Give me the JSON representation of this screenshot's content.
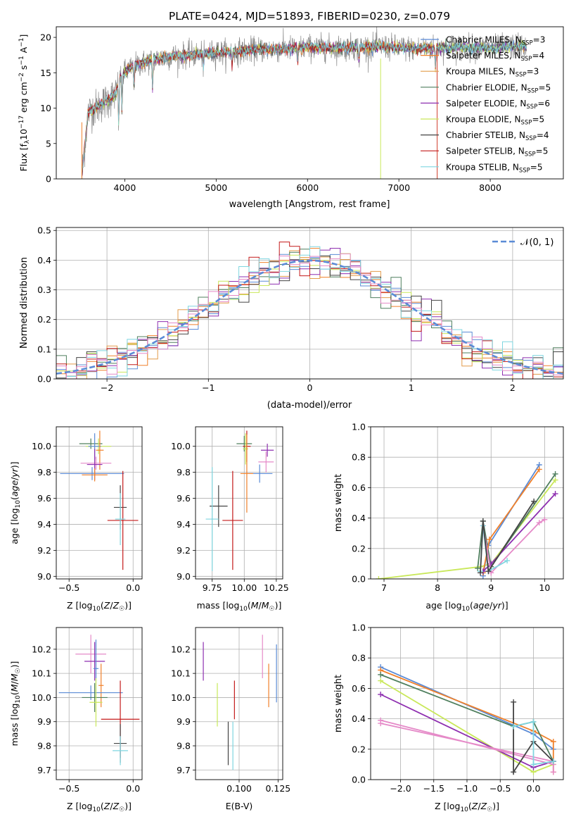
{
  "figure": {
    "title": "PLATE=0424, MJD=51893, FIBERID=0230, z=0.079",
    "colors": {
      "Chabrier MILES": "#5b8bd6",
      "Salpeter MILES": "#f0802a",
      "Kroupa MILES": "#e39b4a",
      "Chabrier ELODIE": "#4f7f5e",
      "Salpeter ELODIE": "#8e2fb0",
      "Kroupa ELODIE": "#c9e85a",
      "Chabrier STELIB": "#444444",
      "Salpeter STELIB": "#c41a1a",
      "Kroupa STELIB": "#7fd6e0",
      "Kroupa MILES alt": "#e58ac8",
      "gauss": "#5b8bd6"
    }
  },
  "chart_data": [
    {
      "id": "spectrum",
      "type": "line",
      "title": "PLATE=0424, MJD=51893, FIBERID=0230, z=0.079",
      "xlabel": "wavelength [Angstrom, rest frame]",
      "ylabel": "Flux [f_λ10^-17 erg cm^-2 s^-1 A^-1]",
      "xlim": [
        3250,
        8800
      ],
      "ylim": [
        0,
        21.5
      ],
      "xticks": [
        "4000",
        "5000",
        "6000",
        "7000",
        "8000"
      ],
      "yticks": [
        "0",
        "5",
        "10",
        "15",
        "20"
      ],
      "grid": false,
      "legend_position": "right",
      "legend": [
        {
          "label": "Chabrier MILES, N",
          "sub": "SSP",
          "tail": "=3",
          "color": "#5b8bd6"
        },
        {
          "label": "Salpeter MILES, N",
          "sub": "SSP",
          "tail": "=4",
          "color": "#f0802a"
        },
        {
          "label": "Kroupa MILES, N",
          "sub": "SSP",
          "tail": "=3",
          "color": "#e39b4a"
        },
        {
          "label": "Chabrier ELODIE, N",
          "sub": "SSP",
          "tail": "=5",
          "color": "#4f7f5e"
        },
        {
          "label": "Salpeter ELODIE, N",
          "sub": "SSP",
          "tail": "=6",
          "color": "#8e2fb0"
        },
        {
          "label": "Kroupa ELODIE, N",
          "sub": "SSP",
          "tail": "=5",
          "color": "#c9e85a"
        },
        {
          "label": "Chabrier STELIB, N",
          "sub": "SSP",
          "tail": "=4",
          "color": "#444444"
        },
        {
          "label": "Salpeter STELIB, N",
          "sub": "SSP",
          "tail": "=5",
          "color": "#c41a1a"
        },
        {
          "label": "Kroupa STELIB, N",
          "sub": "SSP",
          "tail": "=5",
          "color": "#7fd6e0"
        }
      ],
      "data_trend": {
        "x": [
          3530,
          3600,
          3700,
          3800,
          3900,
          3950,
          4000,
          4100,
          4300,
          4500,
          4800,
          5000,
          5200,
          5500,
          5800,
          6000,
          6300,
          6600,
          6800,
          7000,
          7200,
          7400,
          7600,
          7800,
          8000,
          8200,
          8400
        ],
        "y": [
          0.5,
          9.5,
          10.2,
          11.0,
          12.0,
          14.5,
          15.0,
          16.0,
          16.8,
          17.3,
          17.6,
          17.8,
          18.0,
          18.3,
          18.4,
          18.6,
          18.5,
          18.6,
          18.7,
          18.5,
          18.4,
          18.5,
          18.6,
          18.6,
          18.4,
          18.7,
          18.7
        ]
      }
    },
    {
      "id": "residuals",
      "type": "histogram",
      "xlabel": "(data-model)/error",
      "ylabel": "Normed distribution",
      "xlim": [
        -2.5,
        2.5
      ],
      "ylim": [
        0,
        0.51
      ],
      "xticks": [
        "−2",
        "−1",
        "0",
        "1",
        "2"
      ],
      "yticks": [
        "0.0",
        "0.1",
        "0.2",
        "0.3",
        "0.4",
        "0.5"
      ],
      "grid": true,
      "legend_position": "top-right",
      "legend": [
        {
          "label": "𝒩(0, 1)",
          "color": "#5b8bd6"
        }
      ],
      "bin_width": 0.1,
      "bins_start": -2.5,
      "reference_curve": "normal(0,1)"
    },
    {
      "id": "age_vs_Z",
      "type": "errorbar",
      "xlabel": "Z [log10(Z/Z☉)]",
      "ylabel": "age  [log10(age/yr)]",
      "xlim": [
        -0.6,
        0.07
      ],
      "ylim": [
        8.98,
        10.15
      ],
      "xticks": [
        "−0.5",
        "0.0"
      ],
      "yticks": [
        "9.0",
        "9.2",
        "9.4",
        "9.6",
        "9.8",
        "10.0"
      ],
      "grid": true,
      "points": [
        {
          "x": -0.33,
          "y": 10.02,
          "xerr": 0.09,
          "yerr": 0.04,
          "color": "#4f7f5e"
        },
        {
          "x": -0.27,
          "y": 10.0,
          "xerr": 0.1,
          "yerr": 0.06,
          "color": "#c9e85a"
        },
        {
          "x": -0.3,
          "y": 10.0,
          "xerr": 0.05,
          "yerr": 0.1,
          "color": "#5b8bd6"
        },
        {
          "x": -0.26,
          "y": 9.97,
          "xerr": 0.03,
          "yerr": 0.15,
          "color": "#f0802a"
        },
        {
          "x": -0.29,
          "y": 9.87,
          "xerr": 0.12,
          "yerr": 0.05,
          "color": "#e58ac8"
        },
        {
          "x": -0.3,
          "y": 9.86,
          "xerr": 0.06,
          "yerr": 0.12,
          "color": "#8e2fb0"
        },
        {
          "x": -0.32,
          "y": 9.79,
          "xerr": 0.25,
          "yerr": 0.05,
          "color": "#5b8bd6"
        },
        {
          "x": -0.3,
          "y": 9.78,
          "xerr": 0.1,
          "yerr": 0.05,
          "color": "#f0802a"
        },
        {
          "x": -0.1,
          "y": 9.53,
          "xerr": 0.05,
          "yerr": 0.17,
          "color": "#444444"
        },
        {
          "x": -0.08,
          "y": 9.43,
          "xerr": 0.12,
          "yerr": 0.38,
          "color": "#c41a1a"
        },
        {
          "x": -0.1,
          "y": 9.44,
          "xerr": 0.04,
          "yerr": 0.2,
          "color": "#7fd6e0"
        }
      ]
    },
    {
      "id": "age_vs_mass",
      "type": "errorbar",
      "xlabel": "mass [log10(M/M☉)]",
      "ylabel": "",
      "xlim": [
        9.62,
        10.3
      ],
      "ylim": [
        8.98,
        10.15
      ],
      "xticks": [
        "9.75",
        "10.00",
        "10.25"
      ],
      "yticks": [
        "9.0",
        "9.2",
        "9.4",
        "9.6",
        "9.8",
        "10.0"
      ],
      "grid": true,
      "points": [
        {
          "x": 10.0,
          "y": 10.02,
          "xerr": 0.06,
          "yerr": 0.06,
          "color": "#4f7f5e"
        },
        {
          "x": 10.02,
          "y": 10.0,
          "xerr": 0.03,
          "yerr": 0.12,
          "color": "#c41a1a"
        },
        {
          "x": 10.01,
          "y": 9.98,
          "xerr": 0.02,
          "yerr": 0.12,
          "color": "#c9e85a"
        },
        {
          "x": 10.18,
          "y": 9.97,
          "xerr": 0.05,
          "yerr": 0.05,
          "color": "#8e2fb0"
        },
        {
          "x": 10.17,
          "y": 9.88,
          "xerr": 0.06,
          "yerr": 0.08,
          "color": "#e58ac8"
        },
        {
          "x": 10.12,
          "y": 9.79,
          "xerr": 0.1,
          "yerr": 0.07,
          "color": "#5b8bd6"
        },
        {
          "x": 10.02,
          "y": 9.79,
          "xerr": 0.05,
          "yerr": 0.3,
          "color": "#f0802a"
        },
        {
          "x": 9.8,
          "y": 9.54,
          "xerr": 0.07,
          "yerr": 0.16,
          "color": "#444444"
        },
        {
          "x": 9.91,
          "y": 9.43,
          "xerr": 0.08,
          "yerr": 0.38,
          "color": "#c41a1a"
        },
        {
          "x": 9.75,
          "y": 9.44,
          "xerr": 0.05,
          "yerr": 0.4,
          "color": "#7fd6e0"
        }
      ]
    },
    {
      "id": "massweight_vs_age",
      "type": "line",
      "xlabel": "age  [log10(age/yr)]",
      "ylabel": "mass weight",
      "xlim": [
        6.75,
        10.35
      ],
      "ylim": [
        0,
        1.0
      ],
      "xticks": [
        "7",
        "8",
        "9",
        "10"
      ],
      "yticks": [
        "0.0",
        "0.2",
        "0.4",
        "0.6",
        "0.8",
        "1.0"
      ],
      "grid": true,
      "series": [
        {
          "color": "#c9e85a",
          "x": [
            6.9,
            8.8,
            9.0,
            10.2
          ],
          "y": [
            0.0,
            0.08,
            0.1,
            0.65
          ]
        },
        {
          "color": "#4f7f5e",
          "x": [
            8.75,
            8.85,
            9.0,
            10.2
          ],
          "y": [
            0.07,
            0.38,
            0.08,
            0.69
          ]
        },
        {
          "color": "#5b8bd6",
          "x": [
            8.85,
            8.95,
            9.9
          ],
          "y": [
            0.02,
            0.22,
            0.75
          ]
        },
        {
          "color": "#f0802a",
          "x": [
            8.85,
            8.97,
            9.9
          ],
          "y": [
            0.04,
            0.26,
            0.72
          ]
        },
        {
          "color": "#8e2fb0",
          "x": [
            8.85,
            9.0,
            10.2
          ],
          "y": [
            0.05,
            0.1,
            0.56
          ]
        },
        {
          "color": "#e58ac8",
          "x": [
            8.85,
            9.0,
            9.9,
            10.0
          ],
          "y": [
            0.35,
            0.04,
            0.37,
            0.39
          ]
        },
        {
          "color": "#7fd6e0",
          "x": [
            8.8,
            8.85,
            8.95,
            9.3
          ],
          "y": [
            0.05,
            0.35,
            0.05,
            0.12
          ]
        },
        {
          "color": "#444444",
          "x": [
            8.8,
            8.85,
            8.95,
            9.8
          ],
          "y": [
            0.04,
            0.38,
            0.05,
            0.51
          ]
        }
      ]
    },
    {
      "id": "mass_vs_Z",
      "type": "errorbar",
      "xlabel": "Z [log10(Z/Z☉)]",
      "ylabel": "mass [log10(M/M☉)]",
      "xlim": [
        -0.6,
        0.07
      ],
      "ylim": [
        9.66,
        10.29
      ],
      "xticks": [
        "−0.5",
        "0.0"
      ],
      "yticks": [
        "9.7",
        "9.8",
        "9.9",
        "10.0",
        "10.1",
        "10.2"
      ],
      "grid": true,
      "points": [
        {
          "x": -0.33,
          "y": 10.18,
          "xerr": 0.12,
          "yerr": 0.08,
          "color": "#e58ac8"
        },
        {
          "x": -0.3,
          "y": 10.15,
          "xerr": 0.08,
          "yerr": 0.08,
          "color": "#8e2fb0"
        },
        {
          "x": -0.29,
          "y": 10.12,
          "xerr": 0.02,
          "yerr": 0.12,
          "color": "#5b8bd6"
        },
        {
          "x": -0.25,
          "y": 10.05,
          "xerr": 0.02,
          "yerr": 0.09,
          "color": "#f0802a"
        },
        {
          "x": -0.33,
          "y": 10.02,
          "xerr": 0.25,
          "yerr": 0.03,
          "color": "#5b8bd6"
        },
        {
          "x": -0.3,
          "y": 10.0,
          "xerr": 0.1,
          "yerr": 0.06,
          "color": "#4f7f5e"
        },
        {
          "x": -0.29,
          "y": 9.98,
          "xerr": 0.05,
          "yerr": 0.1,
          "color": "#c9e85a"
        },
        {
          "x": -0.1,
          "y": 9.91,
          "xerr": 0.15,
          "yerr": 0.16,
          "color": "#c41a1a"
        },
        {
          "x": -0.1,
          "y": 9.81,
          "xerr": 0.05,
          "yerr": 0.08,
          "color": "#444444"
        },
        {
          "x": -0.1,
          "y": 9.78,
          "xerr": 0.06,
          "yerr": 0.06,
          "color": "#7fd6e0"
        }
      ]
    },
    {
      "id": "mass_vs_ebv",
      "type": "errorbar",
      "xlabel": "E(B-V)",
      "ylabel": "",
      "xlim": [
        0.072,
        0.128
      ],
      "ylim": [
        9.66,
        10.29
      ],
      "xticks": [
        "0.100",
        "0.125"
      ],
      "yticks": [
        "9.7",
        "9.8",
        "9.9",
        "10.0",
        "10.1",
        "10.2"
      ],
      "grid": true,
      "points": [
        {
          "x": 0.077,
          "y": 10.15,
          "xerr": 0.0,
          "yerr": 0.08,
          "color": "#8e2fb0"
        },
        {
          "x": 0.086,
          "y": 9.97,
          "xerr": 0.0,
          "yerr": 0.09,
          "color": "#c9e85a"
        },
        {
          "x": 0.093,
          "y": 9.81,
          "xerr": 0.0,
          "yerr": 0.09,
          "color": "#444444"
        },
        {
          "x": 0.097,
          "y": 9.99,
          "xerr": 0.0,
          "yerr": 0.08,
          "color": "#c41a1a"
        },
        {
          "x": 0.096,
          "y": 9.8,
          "xerr": 0.0,
          "yerr": 0.1,
          "color": "#7fd6e0"
        },
        {
          "x": 0.115,
          "y": 10.17,
          "xerr": 0.0,
          "yerr": 0.09,
          "color": "#e58ac8"
        },
        {
          "x": 0.119,
          "y": 10.05,
          "xerr": 0.0,
          "yerr": 0.09,
          "color": "#f0802a"
        },
        {
          "x": 0.124,
          "y": 10.1,
          "xerr": 0.0,
          "yerr": 0.12,
          "color": "#5b8bd6"
        }
      ]
    },
    {
      "id": "massweight_vs_Z",
      "type": "line",
      "xlabel": "Z [log10(Z/Z☉)]",
      "ylabel": "mass weight",
      "xlim": [
        -2.45,
        0.45
      ],
      "ylim": [
        0,
        1.0
      ],
      "xticks": [
        "−2.0",
        "−1.5",
        "−1.0",
        "−0.5",
        "0.0"
      ],
      "yticks": [
        "0.0",
        "0.2",
        "0.4",
        "0.6",
        "0.8",
        "1.0"
      ],
      "grid": true,
      "series": [
        {
          "color": "#5b8bd6",
          "x": [
            -2.3,
            0.0,
            0.3
          ],
          "y": [
            0.74,
            0.3,
            0.2
          ]
        },
        {
          "color": "#f0802a",
          "x": [
            -2.3,
            0.0,
            0.3,
            0.3
          ],
          "y": [
            0.72,
            0.32,
            0.25,
            0.05
          ]
        },
        {
          "color": "#4f7f5e",
          "x": [
            -2.3,
            -0.3,
            0.0,
            0.3
          ],
          "y": [
            0.69,
            0.35,
            0.38,
            0.12
          ]
        },
        {
          "color": "#c9e85a",
          "x": [
            -2.3,
            0.0,
            0.3
          ],
          "y": [
            0.65,
            0.05,
            0.1
          ]
        },
        {
          "color": "#8e2fb0",
          "x": [
            -2.3,
            0.0,
            0.3
          ],
          "y": [
            0.56,
            0.08,
            0.12
          ]
        },
        {
          "color": "#e58ac8",
          "x": [
            -2.3,
            0.3,
            0.3
          ],
          "y": [
            0.39,
            0.1,
            0.05
          ]
        },
        {
          "color": "#e58ac8",
          "x": [
            -2.3,
            0.3
          ],
          "y": [
            0.37,
            0.12
          ]
        },
        {
          "color": "#444444",
          "x": [
            -0.3,
            -0.3,
            0.0,
            0.3
          ],
          "y": [
            0.51,
            0.05,
            0.25,
            0.12
          ]
        },
        {
          "color": "#7fd6e0",
          "x": [
            -0.3,
            0.0,
            0.0,
            0.3
          ],
          "y": [
            0.35,
            0.38,
            0.1,
            0.12
          ]
        }
      ]
    }
  ]
}
